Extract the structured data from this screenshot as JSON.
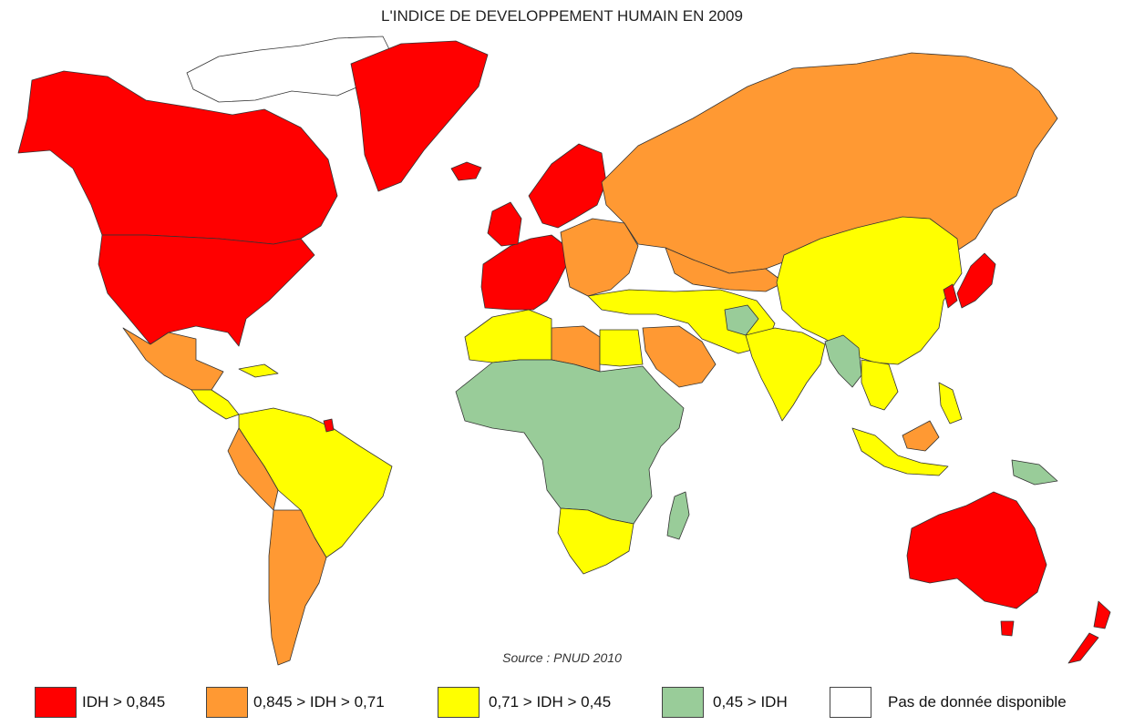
{
  "title": "L'INDICE DE DEVELOPPEMENT HUMAIN EN 2009",
  "source": "Source : PNUD 2010",
  "colors": {
    "very_high": "#ff0000",
    "high": "#ff9933",
    "medium": "#ffff00",
    "low": "#99cc99",
    "no_data": "#ffffff"
  },
  "legend": [
    {
      "label": "IDH > 0,845",
      "color": "#ff0000"
    },
    {
      "label": "0,845 > IDH > 0,71",
      "color": "#ff9933"
    },
    {
      "label": "0,71 > IDH > 0,45",
      "color": "#ffff00"
    },
    {
      "label": "0,45 > IDH",
      "color": "#99cc99"
    },
    {
      "label": "Pas de donnée disponible",
      "color": "#ffffff"
    }
  ]
}
